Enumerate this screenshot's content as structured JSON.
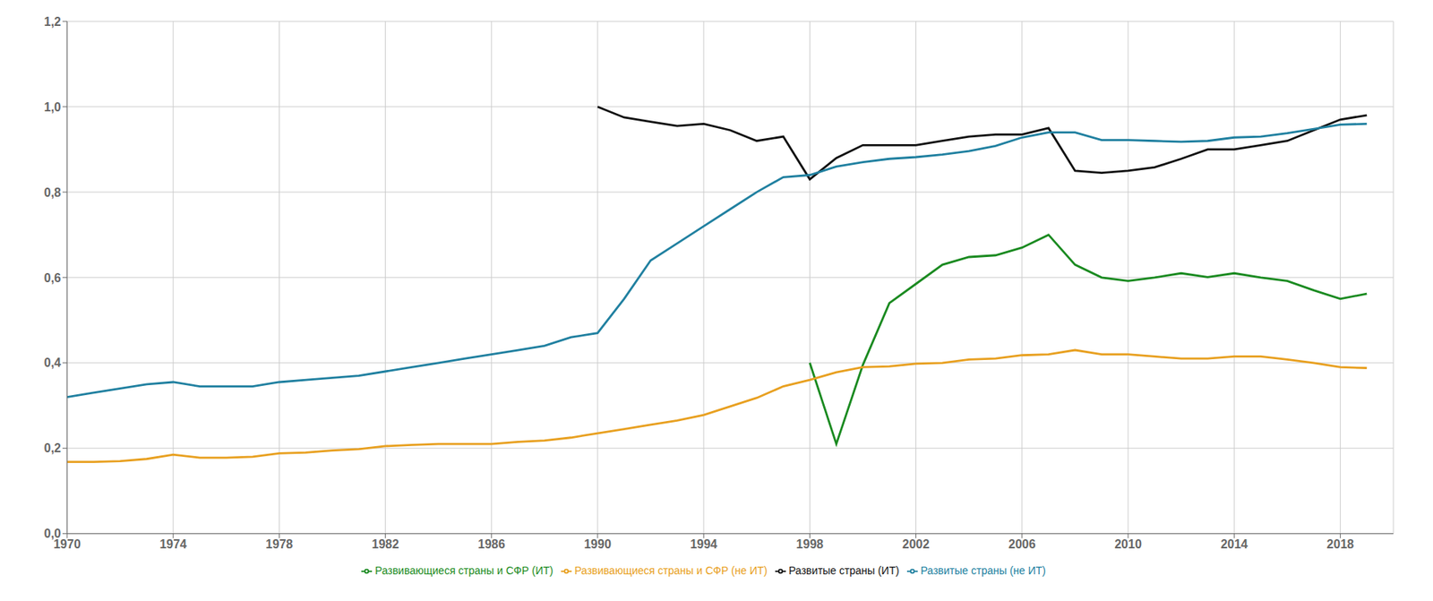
{
  "chart_data": {
    "type": "line",
    "x": [
      1970,
      1971,
      1972,
      1973,
      1974,
      1975,
      1976,
      1977,
      1978,
      1979,
      1980,
      1981,
      1982,
      1983,
      1984,
      1985,
      1986,
      1987,
      1988,
      1989,
      1990,
      1991,
      1992,
      1993,
      1994,
      1995,
      1996,
      1997,
      1998,
      1999,
      2000,
      2001,
      2002,
      2003,
      2004,
      2005,
      2006,
      2007,
      2008,
      2009,
      2010,
      2011,
      2012,
      2013,
      2014,
      2015,
      2016,
      2017,
      2018,
      2019
    ],
    "series": [
      {
        "name": "Развитые страны (ИТ)",
        "color": "#111111",
        "values": [
          null,
          null,
          null,
          null,
          null,
          null,
          null,
          null,
          null,
          null,
          null,
          null,
          null,
          null,
          null,
          null,
          null,
          null,
          null,
          null,
          1.0,
          0.975,
          0.965,
          0.955,
          0.96,
          0.945,
          0.92,
          0.93,
          0.83,
          0.88,
          0.91,
          0.91,
          0.91,
          0.92,
          0.93,
          0.935,
          0.935,
          0.95,
          0.85,
          0.845,
          0.85,
          0.858,
          0.878,
          0.9,
          0.9,
          0.91,
          0.92,
          0.945,
          0.97,
          0.98
        ]
      },
      {
        "name": "Развитые страны (не ИТ)",
        "color": "#2080a0",
        "values": [
          0.32,
          0.33,
          0.34,
          0.35,
          0.355,
          0.345,
          0.345,
          0.345,
          0.355,
          0.36,
          0.365,
          0.37,
          0.38,
          0.39,
          0.4,
          0.41,
          0.42,
          0.43,
          0.44,
          0.46,
          0.47,
          0.55,
          0.64,
          0.68,
          0.72,
          0.76,
          0.8,
          0.835,
          0.84,
          0.86,
          0.87,
          0.878,
          0.882,
          0.888,
          0.896,
          0.908,
          0.928,
          0.94,
          0.94,
          0.922,
          0.922,
          0.92,
          0.918,
          0.92,
          0.928,
          0.93,
          0.938,
          0.948,
          0.958,
          0.96
        ]
      },
      {
        "name": "Развивающиеся страны и СФР (ИТ)",
        "color": "#1a8a20",
        "values": [
          null,
          null,
          null,
          null,
          null,
          null,
          null,
          null,
          null,
          null,
          null,
          null,
          null,
          null,
          null,
          null,
          null,
          null,
          null,
          null,
          null,
          null,
          null,
          null,
          null,
          null,
          null,
          null,
          0.4,
          0.21,
          0.395,
          0.54,
          0.585,
          0.63,
          0.648,
          0.652,
          0.67,
          0.7,
          0.63,
          0.6,
          0.592,
          0.6,
          0.61,
          0.601,
          0.61,
          0.6,
          0.592,
          0.57,
          0.55,
          0.562
        ]
      },
      {
        "name": "Развивающиеся страны и СФР (не ИТ)",
        "color": "#e8a020",
        "values": [
          0.168,
          0.168,
          0.17,
          0.175,
          0.185,
          0.178,
          0.178,
          0.18,
          0.188,
          0.19,
          0.195,
          0.198,
          0.205,
          0.208,
          0.21,
          0.21,
          0.21,
          0.215,
          0.218,
          0.225,
          0.235,
          0.245,
          0.255,
          0.265,
          0.278,
          0.298,
          0.318,
          0.345,
          0.36,
          0.378,
          0.39,
          0.392,
          0.398,
          0.4,
          0.408,
          0.41,
          0.418,
          0.42,
          0.43,
          0.42,
          0.42,
          0.415,
          0.41,
          0.41,
          0.415,
          0.415,
          0.408,
          0.4,
          0.39,
          0.388
        ]
      }
    ],
    "xlim": [
      1970,
      2020
    ],
    "xticks": [
      1970,
      1974,
      1978,
      1982,
      1986,
      1990,
      1994,
      1998,
      2002,
      2006,
      2010,
      2014,
      2018
    ],
    "ylim": [
      0.0,
      1.2
    ],
    "yticks": [
      {
        "value": 0.0,
        "label": "0,0"
      },
      {
        "value": 0.2,
        "label": "0,2"
      },
      {
        "value": 0.4,
        "label": "0,4"
      },
      {
        "value": 0.6,
        "label": "0,6"
      },
      {
        "value": 0.8,
        "label": "0,8"
      },
      {
        "value": 1.0,
        "label": "1,0"
      },
      {
        "value": 1.2,
        "label": "1,2"
      }
    ],
    "grid": true,
    "legend": "bottom"
  }
}
